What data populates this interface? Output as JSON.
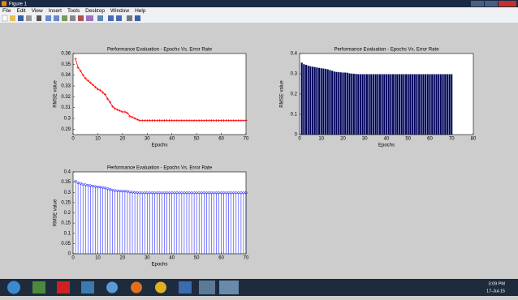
{
  "window": {
    "title": "Figure 1",
    "menu": [
      "File",
      "Edit",
      "View",
      "Insert",
      "Tools",
      "Desktop",
      "Window",
      "Help"
    ]
  },
  "taskbar": {
    "time": "3:09 PM",
    "date": "17-Jul-15"
  },
  "chart_data": [
    {
      "type": "line",
      "title": "Performance Evaluation - Epochs Vs. Error Rate",
      "xlabel": "Epochs",
      "ylabel": "RMSE value",
      "color": "#ff0000",
      "x": [
        1,
        2,
        3,
        4,
        5,
        6,
        7,
        8,
        9,
        10,
        11,
        12,
        13,
        14,
        15,
        16,
        17,
        18,
        19,
        20,
        21,
        22,
        23,
        24,
        25,
        26,
        27,
        28,
        29,
        30,
        31,
        32,
        33,
        34,
        35,
        36,
        37,
        38,
        39,
        40,
        41,
        42,
        43,
        44,
        45,
        46,
        47,
        48,
        49,
        50,
        51,
        52,
        53,
        54,
        55,
        56,
        57,
        58,
        59,
        60,
        61,
        62,
        63,
        64,
        65,
        66,
        67,
        68,
        69,
        70
      ],
      "values": [
        0.355,
        0.347,
        0.344,
        0.34,
        0.337,
        0.335,
        0.333,
        0.331,
        0.329,
        0.327,
        0.326,
        0.324,
        0.322,
        0.318,
        0.315,
        0.311,
        0.309,
        0.308,
        0.307,
        0.306,
        0.306,
        0.305,
        0.302,
        0.301,
        0.3,
        0.299,
        0.298,
        0.298,
        0.298,
        0.298,
        0.298,
        0.298,
        0.298,
        0.298,
        0.298,
        0.298,
        0.298,
        0.298,
        0.298,
        0.298,
        0.298,
        0.298,
        0.298,
        0.298,
        0.298,
        0.298,
        0.298,
        0.298,
        0.298,
        0.298,
        0.298,
        0.298,
        0.298,
        0.298,
        0.298,
        0.298,
        0.298,
        0.298,
        0.298,
        0.298,
        0.298,
        0.298,
        0.298,
        0.298,
        0.298,
        0.298,
        0.298,
        0.298,
        0.298,
        0.298
      ],
      "xlim": [
        0,
        70
      ],
      "ylim": [
        0.285,
        0.36
      ],
      "xticks": [
        0,
        10,
        20,
        30,
        40,
        50,
        60,
        70
      ],
      "yticks": [
        0.29,
        0.3,
        0.31,
        0.32,
        0.33,
        0.34,
        0.35,
        0.36
      ]
    },
    {
      "type": "bar",
      "title": "Performance Evaluation - Epochs Vs. Error Rate",
      "xlabel": "Epochs",
      "ylabel": "RMSE value",
      "color": "#00005a",
      "x": [
        1,
        2,
        3,
        4,
        5,
        6,
        7,
        8,
        9,
        10,
        11,
        12,
        13,
        14,
        15,
        16,
        17,
        18,
        19,
        20,
        21,
        22,
        23,
        24,
        25,
        26,
        27,
        28,
        29,
        30,
        31,
        32,
        33,
        34,
        35,
        36,
        37,
        38,
        39,
        40,
        41,
        42,
        43,
        44,
        45,
        46,
        47,
        48,
        49,
        50,
        51,
        52,
        53,
        54,
        55,
        56,
        57,
        58,
        59,
        60,
        61,
        62,
        63,
        64,
        65,
        66,
        67,
        68,
        69,
        70
      ],
      "values": [
        0.355,
        0.347,
        0.344,
        0.34,
        0.337,
        0.335,
        0.333,
        0.331,
        0.329,
        0.327,
        0.326,
        0.324,
        0.322,
        0.318,
        0.315,
        0.311,
        0.309,
        0.308,
        0.307,
        0.306,
        0.306,
        0.305,
        0.302,
        0.301,
        0.3,
        0.299,
        0.298,
        0.298,
        0.298,
        0.298,
        0.298,
        0.298,
        0.298,
        0.298,
        0.298,
        0.298,
        0.298,
        0.298,
        0.298,
        0.298,
        0.298,
        0.298,
        0.298,
        0.298,
        0.298,
        0.298,
        0.298,
        0.298,
        0.298,
        0.298,
        0.298,
        0.298,
        0.298,
        0.298,
        0.298,
        0.298,
        0.298,
        0.298,
        0.298,
        0.298,
        0.298,
        0.298,
        0.298,
        0.298,
        0.298,
        0.298,
        0.298,
        0.298,
        0.298,
        0.298
      ],
      "xlim": [
        0,
        80
      ],
      "ylim": [
        0,
        0.4
      ],
      "xticks": [
        0,
        10,
        20,
        30,
        40,
        50,
        60,
        70,
        80
      ],
      "yticks": [
        0,
        0.1,
        0.2,
        0.3,
        0.4
      ]
    },
    {
      "type": "stem",
      "title": "Performance Evaluation - Epochs Vs. Error Rate",
      "xlabel": "Epochs",
      "ylabel": "RMSE value",
      "color": "#0000ff",
      "x": [
        1,
        2,
        3,
        4,
        5,
        6,
        7,
        8,
        9,
        10,
        11,
        12,
        13,
        14,
        15,
        16,
        17,
        18,
        19,
        20,
        21,
        22,
        23,
        24,
        25,
        26,
        27,
        28,
        29,
        30,
        31,
        32,
        33,
        34,
        35,
        36,
        37,
        38,
        39,
        40,
        41,
        42,
        43,
        44,
        45,
        46,
        47,
        48,
        49,
        50,
        51,
        52,
        53,
        54,
        55,
        56,
        57,
        58,
        59,
        60,
        61,
        62,
        63,
        64,
        65,
        66,
        67,
        68,
        69,
        70
      ],
      "values": [
        0.355,
        0.347,
        0.344,
        0.34,
        0.337,
        0.335,
        0.333,
        0.331,
        0.329,
        0.327,
        0.326,
        0.324,
        0.322,
        0.318,
        0.315,
        0.311,
        0.309,
        0.308,
        0.307,
        0.306,
        0.306,
        0.305,
        0.302,
        0.301,
        0.3,
        0.299,
        0.298,
        0.298,
        0.298,
        0.298,
        0.298,
        0.298,
        0.298,
        0.298,
        0.298,
        0.298,
        0.298,
        0.298,
        0.298,
        0.298,
        0.298,
        0.298,
        0.298,
        0.298,
        0.298,
        0.298,
        0.298,
        0.298,
        0.298,
        0.298,
        0.298,
        0.298,
        0.298,
        0.298,
        0.298,
        0.298,
        0.298,
        0.298,
        0.298,
        0.298,
        0.298,
        0.298,
        0.298,
        0.298,
        0.298,
        0.298,
        0.298,
        0.298,
        0.298,
        0.298
      ],
      "xlim": [
        0,
        70
      ],
      "ylim": [
        0,
        0.4
      ],
      "xticks": [
        0,
        10,
        20,
        30,
        40,
        50,
        60,
        70
      ],
      "yticks": [
        0,
        0.05,
        0.1,
        0.15,
        0.2,
        0.25,
        0.3,
        0.35,
        0.4
      ]
    }
  ]
}
